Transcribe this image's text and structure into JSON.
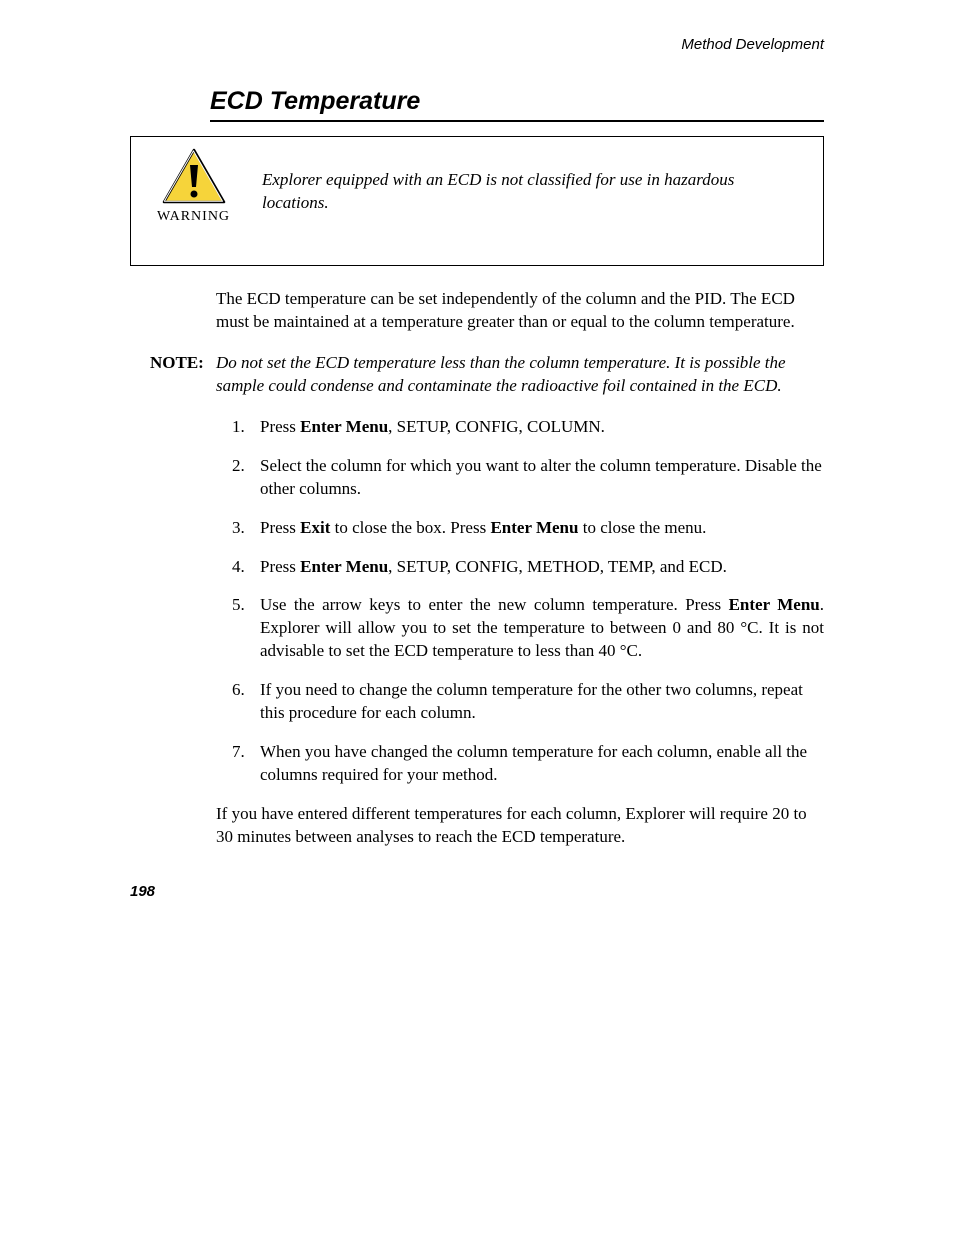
{
  "header": {
    "chapter": "Method Development"
  },
  "section": {
    "title": "ECD Temperature"
  },
  "warning": {
    "label": "WARNING",
    "text": "Explorer equipped with an ECD is not classified for use in hazardous locations.",
    "icon_colors": {
      "fill": "#f6d43a",
      "stroke": "#000000",
      "highlight": "#ffffff"
    }
  },
  "intro": "The ECD temperature can be set independently of the column and the PID. The ECD must be maintained at a temperature greater than or equal to the column temperature.",
  "note": {
    "label": "NOTE:",
    "text": "Do not set the ECD temperature less than the column temperature. It is possible the sample could condense and contaminate the radioactive foil contained in the ECD."
  },
  "steps": [
    {
      "n": "1.",
      "pre": "Press ",
      "b1": "Enter Menu",
      "post": ", SETUP, CONFIG, COLUMN."
    },
    {
      "n": "2.",
      "plain": "Select the column for which you want to alter the column temperature. Disable the other columns."
    },
    {
      "n": "3.",
      "pre": "Press ",
      "b1": "Exit",
      "mid": " to close the box. Press ",
      "b2": "Enter Menu",
      "post": " to close the menu."
    },
    {
      "n": "4.",
      "pre": "Press ",
      "b1": "Enter Menu",
      "post": ", SETUP, CONFIG, METHOD, TEMP, and ECD."
    },
    {
      "n": "5.",
      "pre": "Use the arrow keys to enter the new column temperature. Press ",
      "b1": "Enter Menu",
      "post": ". Explorer will allow you to set the temperature to between 0 and 80 °C. It is not advisable to set the ECD temperature to less than 40 °C.",
      "justify": true
    },
    {
      "n": "6.",
      "plain": "If you need to change the column temperature for the other two columns, repeat this procedure for each column."
    },
    {
      "n": "7.",
      "plain": "When you have changed the column temperature for each column, enable all the columns required for your method."
    }
  ],
  "closing": "If you have entered different temperatures for each column, Explorer will require 20 to 30 minutes between analyses to reach the ECD temperature.",
  "page_number": "198",
  "typography": {
    "body_font": "Times New Roman",
    "heading_font": "Arial",
    "body_size_pt": 17,
    "heading_size_pt": 25,
    "header_size_pt": 15
  }
}
